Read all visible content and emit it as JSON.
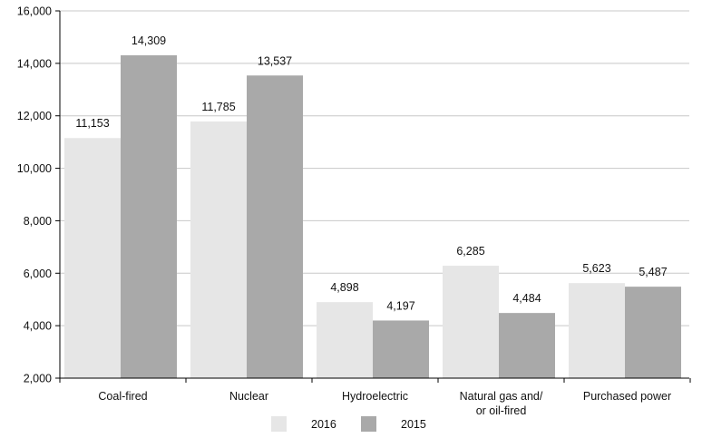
{
  "chart_data": {
    "type": "bar",
    "categories": [
      "Coal-fired",
      "Nuclear",
      "Hydroelectric",
      "Natural gas and/ or oil-fired",
      "Purchased power"
    ],
    "category_lines": [
      [
        "Coal-fired"
      ],
      [
        "Nuclear"
      ],
      [
        "Hydroelectric"
      ],
      [
        "Natural gas and/",
        "or oil-fired"
      ],
      [
        "Purchased power"
      ]
    ],
    "series": [
      {
        "name": "2016",
        "values": [
          11153,
          11785,
          4898,
          6285,
          5623
        ],
        "labels": [
          "11,153",
          "11,785",
          "4,898",
          "6,285",
          "5,623"
        ],
        "color": "#e6e6e6"
      },
      {
        "name": "2015",
        "values": [
          14309,
          13537,
          4197,
          4484,
          5487
        ],
        "labels": [
          "14,309",
          "13,537",
          "4,197",
          "4,484",
          "5,487"
        ],
        "color": "#a9a9a9"
      }
    ],
    "ylim": [
      2000,
      16000
    ],
    "yticks": [
      2000,
      4000,
      6000,
      8000,
      10000,
      12000,
      14000,
      16000
    ],
    "ytick_labels": [
      "2,000",
      "4,000",
      "6,000",
      "8,000",
      "10,000",
      "12,000",
      "14,000",
      "16,000"
    ],
    "grid": true,
    "legend_position": "bottom-center",
    "title": "",
    "xlabel": "",
    "ylabel": ""
  }
}
